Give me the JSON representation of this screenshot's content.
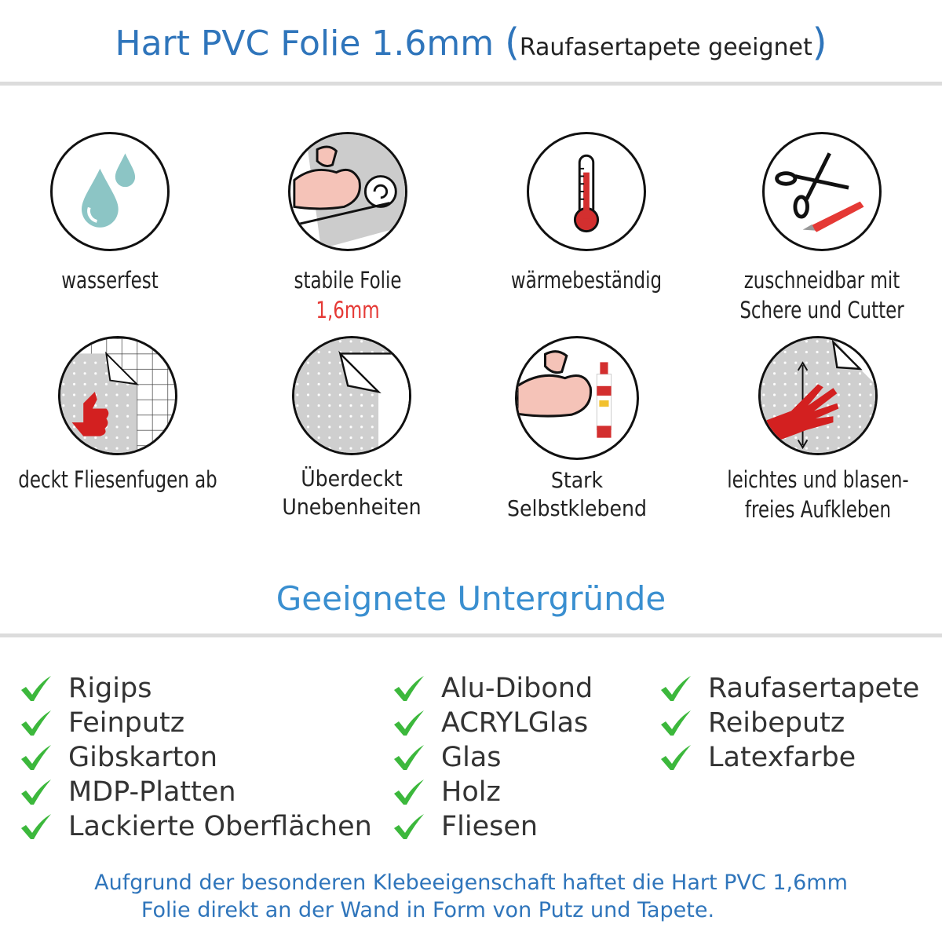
{
  "header": {
    "title_main": "Hart PVC Folie 1.6mm",
    "title_open": "(",
    "title_sub": "Raufasertapete geeignet",
    "title_close": ")"
  },
  "features": [
    {
      "icon": "water-drops-icon",
      "line1": "wasserfest",
      "line2": ""
    },
    {
      "icon": "strong-arm-roll-icon",
      "line1": "stabile Folie",
      "line2": "1,6mm"
    },
    {
      "icon": "thermometer-icon",
      "line1": "wärmebeständig",
      "line2": ""
    },
    {
      "icon": "scissors-cutter-icon",
      "line1": "zuschneidbar mit",
      "line2": "Schere und Cutter"
    },
    {
      "icon": "thumbs-up-tiles-icon",
      "line1": "deckt Fliesenfugen ab",
      "line2": ""
    },
    {
      "icon": "peeling-foil-icon",
      "line1": "Überdeckt",
      "line2": "Unebenheiten"
    },
    {
      "icon": "strong-arm-glue-icon",
      "line1": "Stark",
      "line2": "Selbstklebend"
    },
    {
      "icon": "hand-smoothing-icon",
      "line1": "leichtes und blasen-",
      "line2": "freies Aufkleben"
    }
  ],
  "surfaces": {
    "title": "Geeignete Untergründe",
    "columns": [
      [
        "Rigips",
        "Feinputz",
        "Gibskarton",
        "MDP-Platten",
        "Lackierte Oberflächen"
      ],
      [
        "Alu-Dibond",
        "ACRYLGlas",
        "Glas",
        "Holz",
        "Fliesen"
      ],
      [
        "Raufasertapete",
        "Reibeputz",
        "Latexfarbe"
      ]
    ]
  },
  "footer": {
    "line1": "Aufgrund der besonderen Klebeeigenschaft haftet die Hart PVC 1,6mm",
    "line2": "Folie direkt an der Wand in Form von Putz und Tapete."
  },
  "colors": {
    "title_blue": "#2f75bb",
    "section_blue": "#3a8fd0",
    "check_green": "#3cb83c",
    "highlight_red": "#e53935"
  }
}
